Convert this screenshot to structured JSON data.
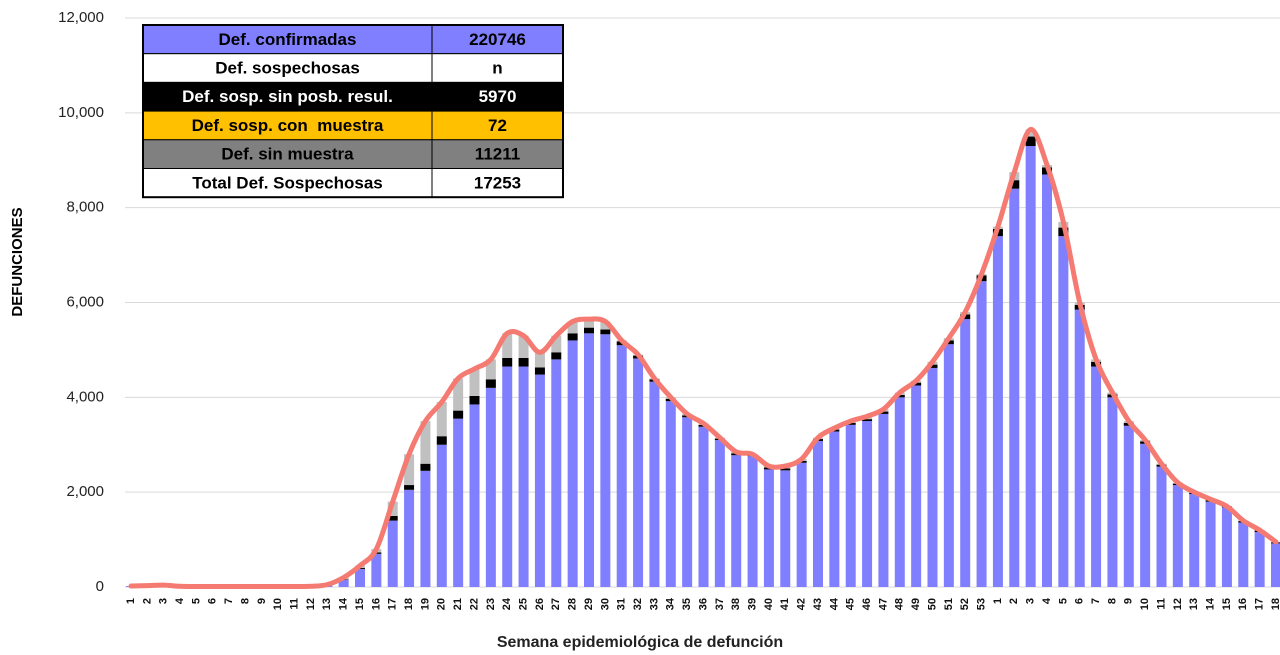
{
  "chart_data": {
    "type": "stacked-bar-line",
    "x_label": "Semana epidemiológica de defunción",
    "y_label": "DEFUNCIONES",
    "categories": [
      "1",
      "2",
      "3",
      "4",
      "5",
      "6",
      "7",
      "8",
      "9",
      "10",
      "11",
      "12",
      "13",
      "14",
      "15",
      "16",
      "17",
      "18",
      "19",
      "20",
      "21",
      "22",
      "23",
      "24",
      "25",
      "26",
      "27",
      "28",
      "29",
      "30",
      "31",
      "32",
      "33",
      "34",
      "35",
      "36",
      "37",
      "38",
      "39",
      "40",
      "41",
      "42",
      "43",
      "44",
      "45",
      "46",
      "47",
      "48",
      "49",
      "50",
      "51",
      "52",
      "53",
      "1",
      "2",
      "3",
      "4",
      "5",
      "6",
      "7",
      "8",
      "9",
      "10",
      "11",
      "12",
      "13",
      "14",
      "15",
      "16",
      "17",
      "18"
    ],
    "series": [
      {
        "type": "bar",
        "color": "#7f7fff",
        "values": [
          20,
          30,
          40,
          15,
          10,
          10,
          10,
          10,
          10,
          10,
          10,
          15,
          40,
          150,
          380,
          700,
          1400,
          2050,
          2450,
          3000,
          3550,
          3850,
          4200,
          4650,
          4650,
          4480,
          4800,
          5200,
          5350,
          5330,
          5100,
          4820,
          4330,
          3920,
          3580,
          3380,
          3100,
          2780,
          2760,
          2480,
          2460,
          2620,
          3080,
          3280,
          3420,
          3500,
          3650,
          4000,
          4250,
          4620,
          5120,
          5650,
          6450,
          7400,
          8400,
          9300,
          8700,
          7400,
          5850,
          4650,
          4000,
          3400,
          3020,
          2540,
          2150,
          1960,
          1800,
          1680,
          1360,
          1160,
          920
        ]
      },
      {
        "type": "bar",
        "color": "#000000",
        "values": [
          0,
          0,
          0,
          0,
          0,
          0,
          0,
          0,
          0,
          0,
          0,
          0,
          0,
          10,
          20,
          30,
          100,
          100,
          150,
          180,
          170,
          180,
          180,
          180,
          180,
          150,
          150,
          150,
          120,
          100,
          80,
          60,
          50,
          50,
          40,
          40,
          30,
          40,
          30,
          40,
          40,
          40,
          40,
          40,
          40,
          40,
          50,
          50,
          60,
          70,
          80,
          100,
          120,
          150,
          180,
          200,
          150,
          180,
          100,
          100,
          60,
          60,
          50,
          40,
          30,
          30,
          30,
          20,
          30,
          30,
          20
        ]
      },
      {
        "type": "bar",
        "color": "#c0c0c0",
        "values": [
          0,
          0,
          0,
          0,
          0,
          0,
          0,
          0,
          0,
          0,
          0,
          0,
          10,
          40,
          50,
          70,
          300,
          650,
          900,
          720,
          680,
          570,
          420,
          520,
          470,
          320,
          350,
          250,
          180,
          170,
          20,
          20,
          20,
          30,
          30,
          30,
          20,
          30,
          10,
          30,
          50,
          40,
          30,
          30,
          40,
          60,
          50,
          50,
          40,
          60,
          50,
          50,
          30,
          50,
          170,
          150,
          50,
          120,
          50,
          50,
          40,
          40,
          30,
          20,
          20,
          10,
          20,
          0,
          10,
          10,
          10
        ]
      },
      {
        "type": "line",
        "color": "#f47a72",
        "values": [
          20,
          30,
          40,
          15,
          10,
          10,
          10,
          10,
          10,
          10,
          10,
          15,
          50,
          200,
          450,
          800,
          1800,
          2800,
          3500,
          3900,
          4400,
          4600,
          4800,
          5350,
          5300,
          4950,
          5300,
          5600,
          5650,
          5600,
          5200,
          4900,
          4400,
          4000,
          3650,
          3450,
          3150,
          2850,
          2800,
          2550,
          2550,
          2700,
          3150,
          3350,
          3500,
          3600,
          3750,
          4100,
          4350,
          4750,
          5250,
          5800,
          6600,
          7600,
          8750,
          9650,
          8900,
          7700,
          6000,
          4800,
          4100,
          3500,
          3100,
          2600,
          2200,
          2000,
          1850,
          1700,
          1400,
          1200,
          950
        ]
      }
    ],
    "ylim": [
      0,
      12000
    ],
    "yticks": [
      0,
      {
        "value": 2000,
        "label": "2,000"
      },
      {
        "value": 4000,
        "label": "4,000"
      },
      {
        "value": 6000,
        "label": "6,000"
      },
      {
        "value": 8000,
        "label": "8,000"
      },
      {
        "value": 10000,
        "label": "10,000"
      },
      {
        "value": 12000,
        "label": "12,000"
      }
    ],
    "grid": true,
    "table": {
      "rows": [
        {
          "label": "Def. confirmadas",
          "value": "220746",
          "fill": "#7f7fff",
          "text": "#000000"
        },
        {
          "label": "Def. sospechosas",
          "value": "n",
          "fill": "#ffffff",
          "text": "#000000"
        },
        {
          "label": "Def. sosp. sin posb. resul.",
          "value": "5970",
          "fill": "#000000",
          "text": "#ffffff"
        },
        {
          "label": "Def. sosp. con  muestra",
          "value": "72",
          "fill": "#ffc000",
          "text": "#000000"
        },
        {
          "label": "Def. sin muestra",
          "value": "11211",
          "fill": "#808080",
          "text": "#000000"
        },
        {
          "label": "Total Def. Sospechosas",
          "value": "17253",
          "fill": "#ffffff",
          "text": "#000000"
        }
      ]
    }
  }
}
